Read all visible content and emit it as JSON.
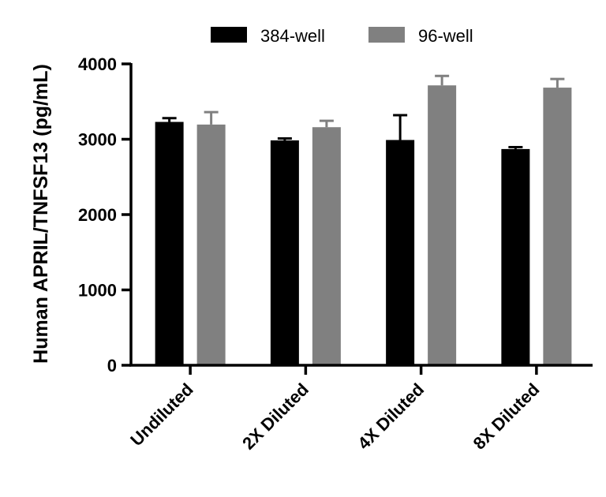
{
  "chart_data": {
    "type": "bar",
    "title": "",
    "xlabel": "",
    "ylabel": "Human APRIL/TNFSF13 (pg/mL)",
    "ylim": [
      0,
      4000
    ],
    "yticks": [
      0,
      1000,
      2000,
      3000,
      4000
    ],
    "ytick_labels": [
      "0",
      "1000",
      "2000",
      "3000",
      "4000"
    ],
    "grid": false,
    "legend_position": "top",
    "categories": [
      "Undiluted",
      "2X Diluted",
      "4X Diluted",
      "8X Diluted"
    ],
    "series": [
      {
        "name": "384-well",
        "color": "#000000",
        "values": [
          3230,
          2985,
          2990,
          2870
        ],
        "errors": [
          50,
          25,
          330,
          25
        ]
      },
      {
        "name": "96-well",
        "color": "#808080",
        "values": [
          3195,
          3160,
          3715,
          3685
        ],
        "errors": [
          165,
          85,
          125,
          115
        ]
      }
    ]
  }
}
